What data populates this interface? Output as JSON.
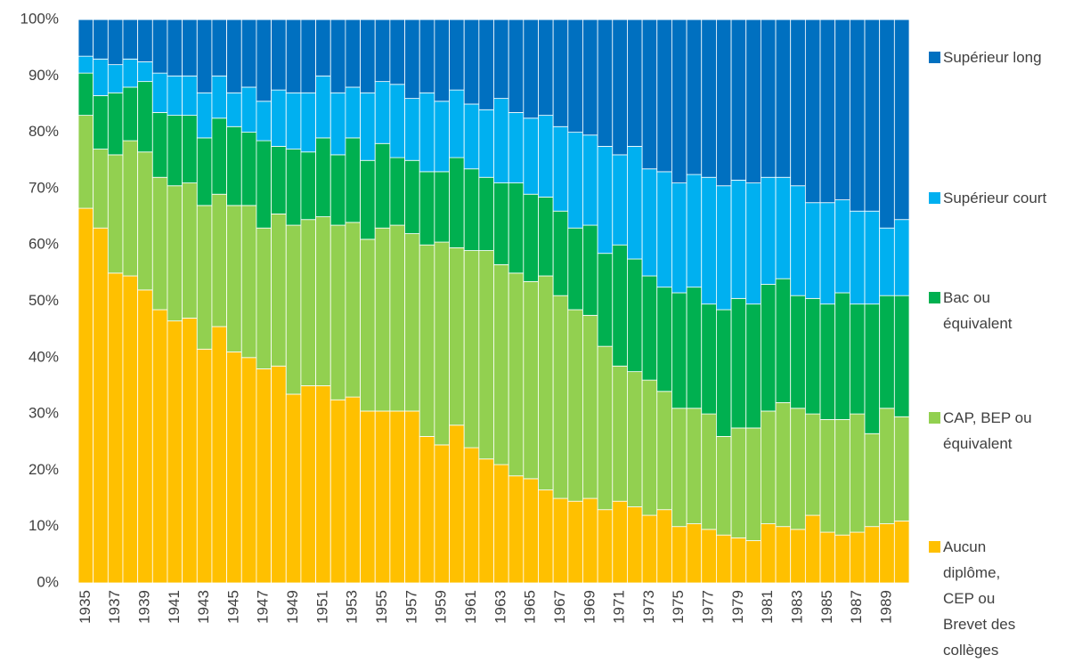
{
  "chart_data": {
    "type": "stacked-bar-100",
    "categories": [
      "1935",
      null,
      "1937",
      null,
      "1939",
      null,
      "1941",
      null,
      "1943",
      null,
      "1945",
      null,
      "1947",
      null,
      "1949",
      null,
      "1951",
      null,
      "1953",
      null,
      "1955",
      null,
      "1957",
      null,
      "1959",
      null,
      "1961",
      null,
      "1963",
      null,
      "1965",
      null,
      "1967",
      null,
      "1969",
      null,
      "1971",
      null,
      "1973",
      null,
      "1975",
      null,
      "1977",
      null,
      "1979",
      null,
      "1981",
      null,
      "1983",
      null,
      "1985",
      null,
      "1987",
      null,
      "1989",
      null
    ],
    "series": [
      {
        "name": "Aucun diplôme, CEP ou Brevet des collèges",
        "color": "#ffc000",
        "values": [
          66.5,
          63,
          55,
          54.5,
          52,
          48.5,
          46.5,
          47,
          41.5,
          45.5,
          41,
          40,
          38,
          38.5,
          33.5,
          35,
          35,
          32.5,
          33,
          30.5,
          30.5,
          30.5,
          30.5,
          26,
          24.5,
          28,
          24,
          22,
          21,
          19,
          18.5,
          16.5,
          15,
          14.5,
          15,
          13,
          14.5,
          13.5,
          12,
          13,
          10,
          10.5,
          9.5,
          8.5,
          8,
          7.5,
          10.5,
          10,
          9.5,
          12,
          9,
          8.5,
          9,
          10,
          10.5,
          11
        ]
      },
      {
        "name": "CAP, BEP ou équivalent",
        "color": "#92d050",
        "values": [
          16.5,
          14,
          21,
          24,
          24.5,
          23.5,
          24,
          24,
          25.5,
          23.5,
          26,
          27,
          25,
          27,
          30,
          29.5,
          30,
          31,
          31,
          30.5,
          32.5,
          33,
          31.5,
          34,
          36,
          31.5,
          35,
          37,
          35.5,
          36,
          35,
          38,
          36,
          34,
          32.5,
          29,
          24,
          24,
          24,
          21,
          21,
          20.5,
          20.5,
          17.5,
          19.5,
          20,
          20,
          22,
          21.5,
          18,
          20,
          20.5,
          21,
          16.5,
          20.5,
          18.5
        ]
      },
      {
        "name": "Bac ou équivalent",
        "color": "#00b050",
        "values": [
          7.5,
          9.5,
          11,
          9.5,
          12.5,
          11.5,
          12.5,
          12,
          12,
          13.5,
          14,
          13,
          15.5,
          12,
          13.5,
          12,
          14,
          12.5,
          15,
          14,
          15,
          12,
          13,
          13,
          12.5,
          16,
          14.5,
          13,
          14.5,
          16,
          15.5,
          14,
          15,
          14.5,
          16,
          16.5,
          21.5,
          20,
          18.5,
          18.5,
          20.5,
          21.5,
          19.5,
          22.5,
          23,
          22,
          22.5,
          22,
          20,
          20.5,
          20.5,
          22.5,
          19.5,
          23,
          20,
          21.5
        ]
      },
      {
        "name": "Supérieur court",
        "color": "#00b0f0",
        "values": [
          3,
          6.5,
          5,
          5,
          3.5,
          7,
          7,
          7,
          8,
          7.5,
          6,
          8,
          7,
          10,
          10,
          10.5,
          11,
          11,
          9,
          12,
          11,
          13,
          11,
          14,
          12.5,
          12,
          11.5,
          12,
          15,
          12.5,
          13.5,
          14.5,
          15,
          17,
          16,
          19,
          16,
          20,
          19,
          20.5,
          19.5,
          20,
          22.5,
          22,
          21,
          21.5,
          19,
          18,
          19.5,
          17,
          18,
          16.5,
          16.5,
          16.5,
          12,
          13.5
        ]
      },
      {
        "name": "Supérieur long",
        "color": "#0070c0",
        "values": [
          6.5,
          7,
          8,
          7,
          7.5,
          9.5,
          10,
          10,
          13,
          10,
          13,
          12,
          14.5,
          12.5,
          13,
          13,
          10,
          13,
          12,
          13,
          11,
          11.5,
          14,
          13,
          14.5,
          12.5,
          15,
          16,
          14,
          16.5,
          17.5,
          17,
          19,
          20,
          20.5,
          22.5,
          24,
          22.5,
          26.5,
          27,
          29,
          27.5,
          28,
          29.5,
          28.5,
          29,
          28,
          28,
          29.5,
          32.5,
          32.5,
          32,
          34,
          34,
          37,
          35.5
        ]
      }
    ],
    "ylim": [
      0,
      100
    ],
    "yticks": [
      {
        "value": 0,
        "label": "0%"
      },
      {
        "value": 10,
        "label": "10%"
      },
      {
        "value": 20,
        "label": "20%"
      },
      {
        "value": 30,
        "label": "30%"
      },
      {
        "value": 40,
        "label": "40%"
      },
      {
        "value": 50,
        "label": "50%"
      },
      {
        "value": 60,
        "label": "60%"
      },
      {
        "value": 70,
        "label": "70%"
      },
      {
        "value": 80,
        "label": "80%"
      },
      {
        "value": 90,
        "label": "90%"
      },
      {
        "value": 100,
        "label": "100%"
      }
    ],
    "legend": "right"
  }
}
